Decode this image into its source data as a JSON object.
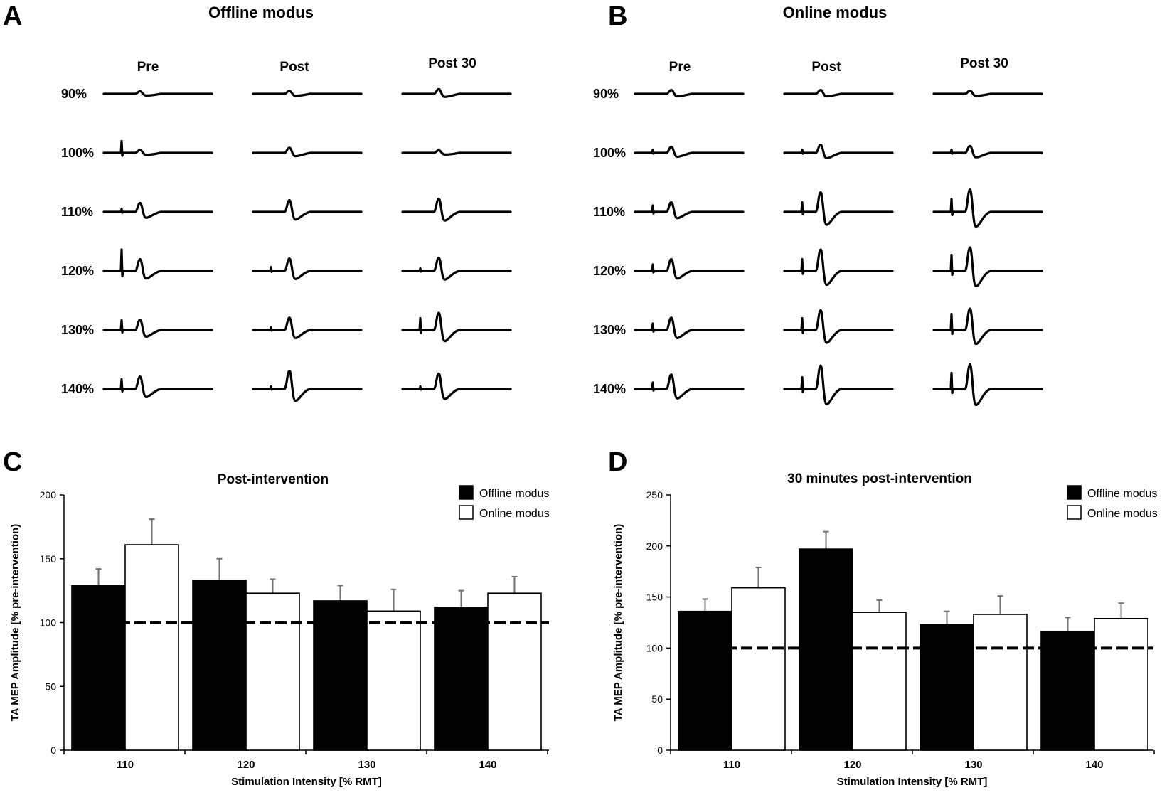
{
  "panels": {
    "A": {
      "letter": "A",
      "title": "Offline modus"
    },
    "B": {
      "letter": "B",
      "title": "Online modus"
    },
    "C": {
      "letter": "C"
    },
    "D": {
      "letter": "D"
    }
  },
  "trace_panels": [
    {
      "id": "A",
      "columns": [
        "Pre",
        "Post",
        "Post 30"
      ],
      "rows": [
        "90%",
        "100%",
        "110%",
        "120%",
        "130%",
        "140%"
      ],
      "mep_peak": [
        [
          0.12,
          0.14,
          0.22
        ],
        [
          0.14,
          0.24,
          0.12
        ],
        [
          0.42,
          0.55,
          0.62
        ],
        [
          0.55,
          0.58,
          0.62
        ],
        [
          0.48,
          0.58,
          0.8
        ],
        [
          0.58,
          0.85,
          0.72
        ]
      ],
      "artifact": [
        [
          0,
          0,
          0
        ],
        [
          0.55,
          0,
          0
        ],
        [
          0.15,
          0,
          0
        ],
        [
          1.0,
          0.18,
          0.12
        ],
        [
          0.45,
          0.12,
          0.55
        ],
        [
          0.45,
          0.12,
          0.12
        ]
      ]
    },
    {
      "id": "B",
      "columns": [
        "Pre",
        "Post",
        "Post 30"
      ],
      "rows": [
        "90%",
        "100%",
        "110%",
        "120%",
        "130%",
        "140%"
      ],
      "mep_peak": [
        [
          0.18,
          0.18,
          0.15
        ],
        [
          0.28,
          0.38,
          0.32
        ],
        [
          0.45,
          0.92,
          1.05
        ],
        [
          0.55,
          1.0,
          1.1
        ],
        [
          0.58,
          0.92,
          1.0
        ],
        [
          0.68,
          1.1,
          1.15
        ]
      ],
      "artifact": [
        [
          0,
          0,
          0
        ],
        [
          0.15,
          0.15,
          0.15
        ],
        [
          0.3,
          0.45,
          0.6
        ],
        [
          0.3,
          0.55,
          0.75
        ],
        [
          0.3,
          0.55,
          0.75
        ],
        [
          0.3,
          0.55,
          0.75
        ]
      ]
    }
  ],
  "chart_data": [
    {
      "id": "C",
      "type": "bar",
      "title": "Post-intervention",
      "xlabel": "Stimulation Intensity [% RMT]",
      "ylabel": "TA MEP Amplitude [% pre-intervention)",
      "categories": [
        "110",
        "120",
        "130",
        "140"
      ],
      "ylim": [
        0,
        200
      ],
      "yticks": [
        "0",
        "50",
        "100",
        "150",
        "200"
      ],
      "baseline": 100,
      "legend_position": "top-right",
      "series": [
        {
          "name": "Offline modus",
          "color": "#000000",
          "values": [
            129,
            133,
            117,
            112
          ],
          "errors": [
            13,
            17,
            12,
            13
          ]
        },
        {
          "name": "Online modus",
          "color": "#ffffff",
          "values": [
            161,
            123,
            109,
            123
          ],
          "errors": [
            20,
            11,
            17,
            13
          ]
        }
      ]
    },
    {
      "id": "D",
      "type": "bar",
      "title": "30 minutes post-intervention",
      "xlabel": "Stimulation Intensity [% RMT]",
      "ylabel": "TA MEP Amplitude [% pre-intervention)",
      "categories": [
        "110",
        "120",
        "130",
        "140"
      ],
      "ylim": [
        0,
        250
      ],
      "yticks": [
        "0",
        "50",
        "100",
        "150",
        "200",
        "250"
      ],
      "baseline": 100,
      "legend_position": "top-right",
      "series": [
        {
          "name": "Offline modus",
          "color": "#000000",
          "values": [
            136,
            197,
            123,
            116
          ],
          "errors": [
            12,
            17,
            13,
            14
          ]
        },
        {
          "name": "Online modus",
          "color": "#ffffff",
          "values": [
            159,
            135,
            133,
            129
          ],
          "errors": [
            20,
            12,
            18,
            15
          ]
        }
      ]
    }
  ]
}
